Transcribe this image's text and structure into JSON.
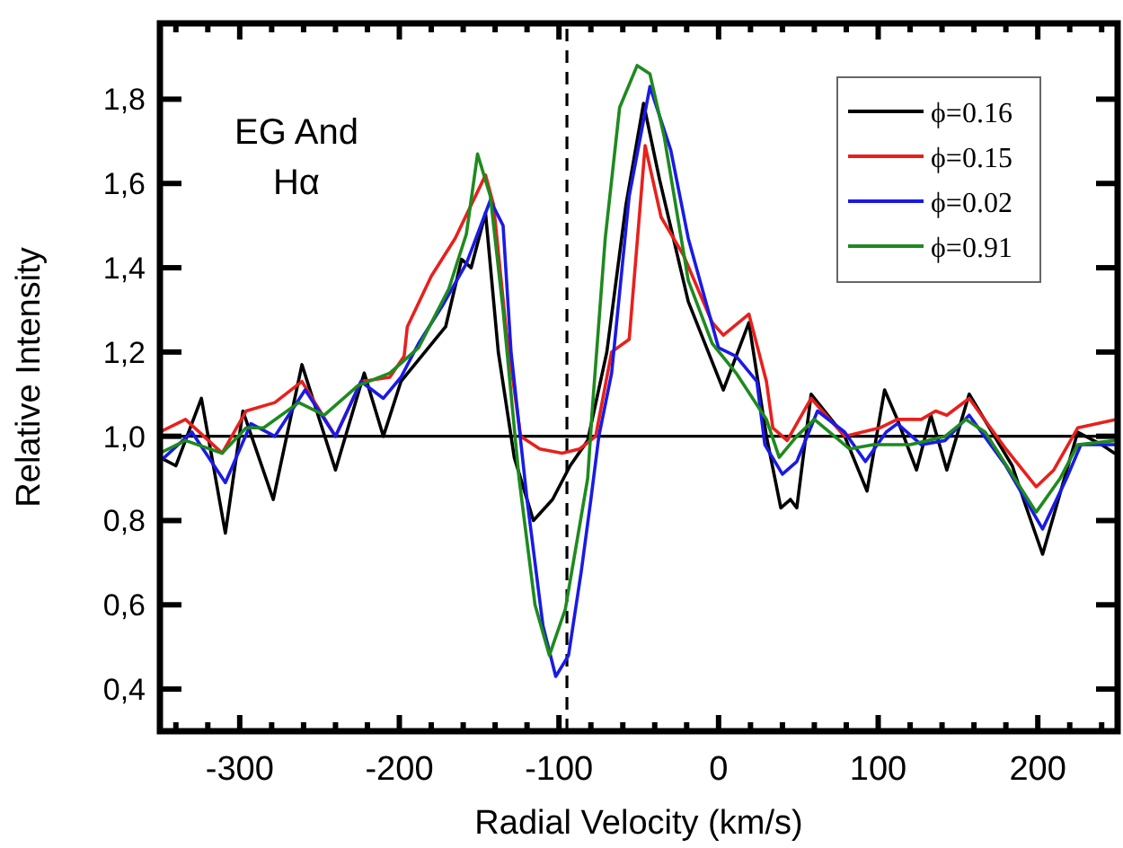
{
  "chart_data": {
    "type": "line",
    "xlabel": "Radial Velocity (km/s)",
    "ylabel": "Relative Intensity",
    "annotations": [
      "EG And",
      "Hα"
    ],
    "xlim": [
      -350,
      250
    ],
    "ylim": [
      0.3,
      1.98
    ],
    "xticks": [
      {
        "value": -340,
        "label": null
      },
      {
        "value": -320,
        "label": null
      },
      -300,
      {
        "value": -280,
        "label": null
      },
      {
        "value": -260,
        "label": null
      },
      {
        "value": -240,
        "label": null
      },
      {
        "value": -220,
        "label": null
      },
      -200,
      {
        "value": -180,
        "label": null
      },
      {
        "value": -160,
        "label": null
      },
      {
        "value": -140,
        "label": null
      },
      {
        "value": -120,
        "label": null
      },
      -100,
      {
        "value": -80,
        "label": null
      },
      {
        "value": -60,
        "label": null
      },
      {
        "value": -40,
        "label": null
      },
      {
        "value": -20,
        "label": null
      },
      0,
      {
        "value": 20,
        "label": null
      },
      {
        "value": 40,
        "label": null
      },
      {
        "value": 60,
        "label": null
      },
      {
        "value": 80,
        "label": null
      },
      100,
      {
        "value": 120,
        "label": null
      },
      {
        "value": 140,
        "label": null
      },
      {
        "value": 160,
        "label": null
      },
      {
        "value": 180,
        "label": null
      },
      200,
      {
        "value": 220,
        "label": null
      },
      {
        "value": 240,
        "label": null
      }
    ],
    "yticks": [
      {
        "value": 0.4,
        "label": "0,4"
      },
      {
        "value": 0.6,
        "label": "0,6"
      },
      {
        "value": 0.8,
        "label": "0,8"
      },
      {
        "value": 1.0,
        "label": "1,0"
      },
      {
        "value": 1.2,
        "label": "1,2"
      },
      {
        "value": 1.4,
        "label": "1,4"
      },
      {
        "value": 1.6,
        "label": "1,6"
      },
      {
        "value": 1.8,
        "label": "1,8"
      }
    ],
    "grid": false,
    "legend": "top right",
    "marker": "none",
    "line_style": "solid",
    "ref_lines": [
      {
        "axis": "x",
        "value": -95,
        "color": "#000000",
        "line_style": "dashed"
      },
      {
        "axis": "y",
        "value": 1.0,
        "color": "#000000",
        "line_style": "solid"
      }
    ],
    "series": [
      {
        "name": "ϕ=0.16",
        "color": "#000000",
        "x": [
          -350,
          -340,
          -324,
          -309,
          -298,
          -279,
          -261,
          -240,
          -222,
          -210,
          -199,
          -171,
          -161,
          -155,
          -146,
          -138,
          -128,
          -116,
          -104,
          -93,
          -82,
          -70,
          -58,
          -47,
          -37,
          -19,
          3,
          19,
          30,
          39,
          45,
          49,
          58,
          79,
          93,
          104,
          112,
          124,
          133,
          143,
          157,
          184,
          192,
          203,
          225,
          240,
          248
        ],
        "values": [
          0.95,
          0.93,
          1.09,
          0.77,
          1.06,
          0.85,
          1.17,
          0.92,
          1.15,
          1.0,
          1.13,
          1.26,
          1.42,
          1.4,
          1.53,
          1.2,
          0.95,
          0.8,
          0.85,
          0.93,
          0.99,
          1.2,
          1.55,
          1.79,
          1.61,
          1.32,
          1.11,
          1.27,
          1.0,
          0.83,
          0.85,
          0.83,
          1.1,
          1.0,
          0.87,
          1.11,
          1.04,
          0.92,
          1.05,
          0.92,
          1.1,
          0.93,
          0.84,
          0.72,
          1.01,
          0.98,
          0.96
        ]
      },
      {
        "name": "ϕ=0.15",
        "color": "#e8201c",
        "x": [
          -350,
          -334,
          -311,
          -296,
          -278,
          -261,
          -240,
          -224,
          -206,
          -197,
          -195,
          -180,
          -165,
          -146,
          -141,
          -133,
          -124,
          -112,
          -98,
          -87,
          -77,
          -67,
          -56,
          -46,
          -36,
          -22,
          -4,
          3,
          19,
          30,
          34,
          43,
          58,
          79,
          101,
          112,
          127,
          136,
          143,
          157,
          180,
          199,
          210,
          225,
          249
        ],
        "values": [
          1.01,
          1.04,
          0.96,
          1.06,
          1.08,
          1.13,
          1.0,
          1.13,
          1.14,
          1.19,
          1.26,
          1.38,
          1.47,
          1.62,
          1.55,
          1.25,
          1.0,
          0.97,
          0.96,
          0.97,
          1.0,
          1.2,
          1.23,
          1.69,
          1.52,
          1.43,
          1.27,
          1.24,
          1.29,
          1.13,
          1.02,
          0.99,
          1.09,
          1.0,
          1.02,
          1.04,
          1.04,
          1.06,
          1.05,
          1.09,
          0.97,
          0.88,
          0.92,
          1.02,
          1.04
        ]
      },
      {
        "name": "ϕ=0.02",
        "color": "#1a1ae6",
        "x": [
          -350,
          -330,
          -309,
          -293,
          -278,
          -259,
          -240,
          -224,
          -210,
          -199,
          -188,
          -173,
          -158,
          -143,
          -135,
          -130,
          -120,
          -110,
          -102,
          -94,
          -86,
          -80,
          -75,
          -67,
          -56,
          -43,
          -30,
          -19,
          0,
          11,
          24,
          29,
          40,
          49,
          62,
          79,
          92,
          105,
          112,
          127,
          142,
          157,
          180,
          203,
          218,
          227,
          249
        ],
        "values": [
          0.94,
          1.01,
          0.89,
          1.03,
          1.0,
          1.11,
          1.0,
          1.13,
          1.09,
          1.14,
          1.22,
          1.31,
          1.41,
          1.56,
          1.5,
          1.2,
          0.85,
          0.55,
          0.43,
          0.48,
          0.68,
          0.85,
          1.0,
          1.15,
          1.57,
          1.83,
          1.68,
          1.47,
          1.21,
          1.19,
          1.13,
          0.98,
          0.91,
          0.94,
          1.06,
          1.01,
          0.94,
          1.01,
          1.03,
          0.98,
          0.99,
          1.05,
          0.93,
          0.78,
          0.9,
          0.98,
          0.98
        ]
      },
      {
        "name": "ϕ=0.91",
        "color": "#1e8a1e",
        "x": [
          -350,
          -334,
          -311,
          -296,
          -285,
          -263,
          -247,
          -226,
          -206,
          -188,
          -169,
          -158,
          -151,
          -143,
          -135,
          -125,
          -115,
          -106,
          -96,
          -82,
          -79,
          -71,
          -62,
          -51,
          -43,
          -34,
          -19,
          -4,
          11,
          30,
          38,
          49,
          60,
          82,
          97,
          120,
          142,
          155,
          167,
          199,
          214,
          225,
          249
        ],
        "values": [
          0.96,
          0.99,
          0.96,
          1.02,
          1.02,
          1.08,
          1.05,
          1.12,
          1.15,
          1.21,
          1.35,
          1.48,
          1.67,
          1.57,
          1.3,
          0.9,
          0.6,
          0.48,
          0.59,
          0.9,
          1.07,
          1.47,
          1.78,
          1.88,
          1.86,
          1.71,
          1.37,
          1.22,
          1.15,
          1.04,
          0.95,
          1.0,
          1.04,
          0.97,
          0.98,
          0.98,
          1.0,
          1.04,
          1.01,
          0.82,
          0.9,
          0.98,
          0.99
        ]
      }
    ]
  }
}
